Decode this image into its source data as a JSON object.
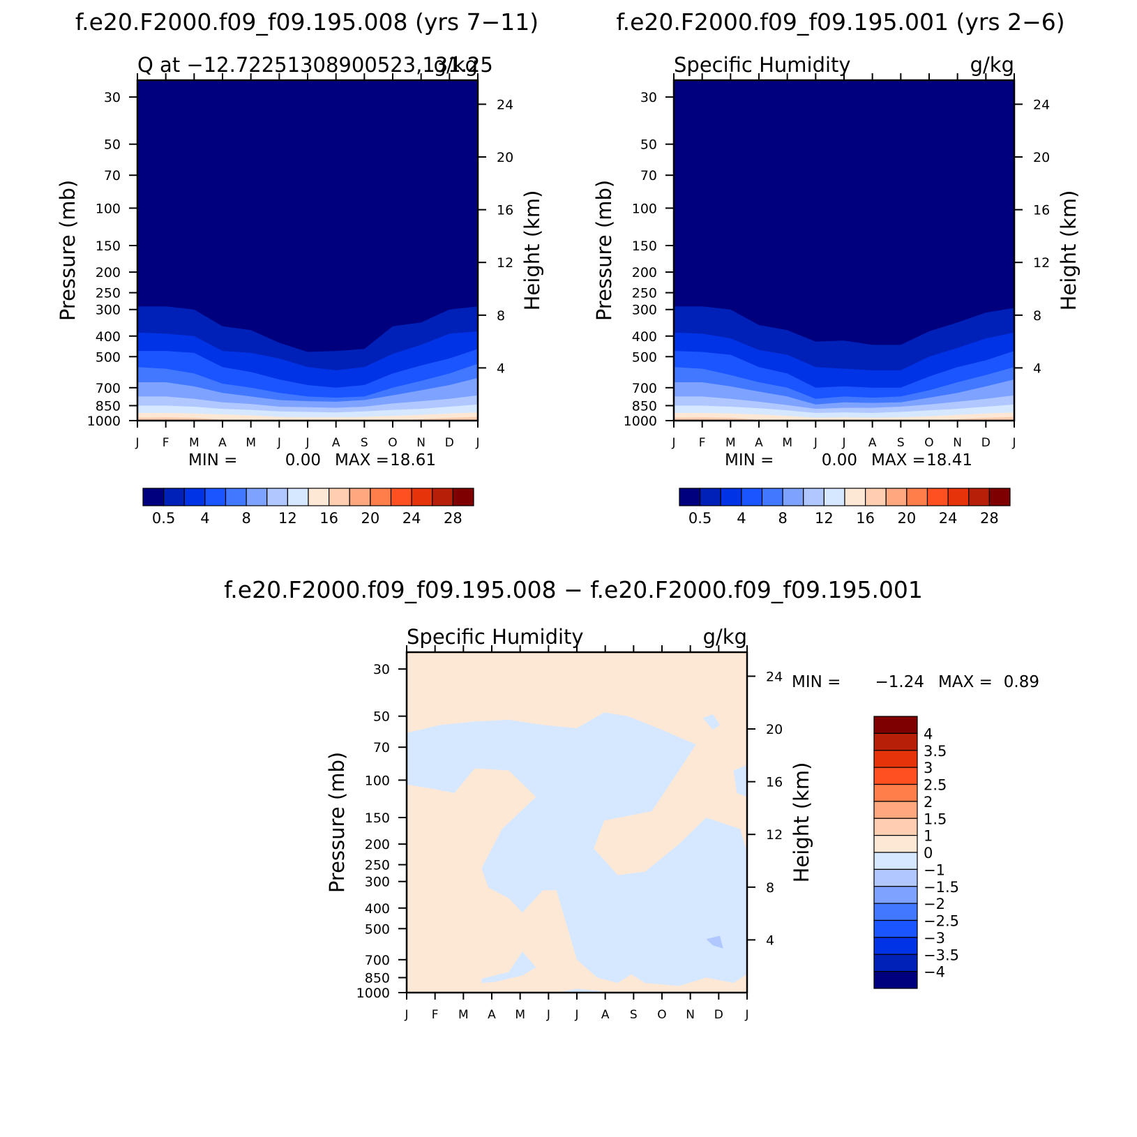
{
  "figure": {
    "panel_a_title": "f.e20.F2000.f09_f09.195.008 (yrs 7−11)",
    "panel_b_title": "f.e20.F2000.f09_f09.195.001 (yrs 2−6)",
    "panel_c_title": "f.e20.F2000.f09_f09.195.008 − f.e20.F2000.f09_f09.195.001"
  },
  "colors": {
    "abs_scale": [
      "#00007f",
      "#0021b8",
      "#0033e6",
      "#1a55ff",
      "#4178ff",
      "#7ea2ff",
      "#b0c8ff",
      "#d6e8ff",
      "#fde8d6",
      "#ffcdb0",
      "#ffa77f",
      "#ff7e4a",
      "#ff5022",
      "#e6330a",
      "#b81f08",
      "#7f0000"
    ],
    "diff_scale": [
      "#00007f",
      "#0021b8",
      "#0033e6",
      "#1a55ff",
      "#4178ff",
      "#7ea2ff",
      "#b0c8ff",
      "#d6e8ff",
      "#fde8d6",
      "#ffcdb0",
      "#ffa77f",
      "#ff7e4a",
      "#ff5022",
      "#e6330a",
      "#b81f08",
      "#7f0000"
    ]
  },
  "chart_data": [
    {
      "type": "heatmap",
      "title": "f.e20.F2000.f09_f09.195.008 (yrs 7−11)",
      "left_label": "Q at −12.72251308900523,131.25",
      "right_label": "g/kg",
      "xlabel": "",
      "ylabel": "Pressure (mb)",
      "y2label": "Height (km)",
      "months": [
        "J",
        "F",
        "M",
        "A",
        "M",
        "J",
        "J",
        "A",
        "S",
        "O",
        "N",
        "D",
        "J"
      ],
      "pressure_ticks": [
        30,
        50,
        70,
        100,
        150,
        200,
        250,
        300,
        400,
        500,
        700,
        850,
        1000
      ],
      "height_ticks": [
        4,
        8,
        12,
        16,
        20,
        24
      ],
      "ylim": [
        1000,
        25
      ],
      "min_label": "MIN =",
      "min_value": "0.00",
      "max_label": "MAX =",
      "max_value": "18.61",
      "min": 0.0,
      "max": 18.61,
      "colorbar_labels": [
        "0.5",
        "4",
        "8",
        "12",
        "16",
        "20",
        "24",
        "28"
      ],
      "contour_levels": [
        0.5,
        2,
        4,
        6,
        8,
        10,
        12,
        14,
        16
      ],
      "contour_pressures": [
        [
          290,
          290,
          300,
          360,
          375,
          430,
          475,
          470,
          460,
          360,
          345,
          300,
          290
        ],
        [
          385,
          390,
          400,
          470,
          480,
          510,
          560,
          580,
          560,
          485,
          440,
          390,
          380
        ],
        [
          470,
          470,
          480,
          560,
          590,
          640,
          680,
          700,
          680,
          600,
          550,
          510,
          460
        ],
        [
          560,
          570,
          600,
          670,
          700,
          740,
          770,
          780,
          770,
          700,
          650,
          600,
          540
        ],
        [
          660,
          660,
          690,
          740,
          770,
          800,
          810,
          815,
          800,
          760,
          720,
          680,
          630
        ],
        [
          770,
          770,
          790,
          820,
          835,
          860,
          865,
          870,
          860,
          830,
          810,
          790,
          760
        ],
        [
          850,
          850,
          860,
          880,
          890,
          905,
          910,
          915,
          905,
          890,
          880,
          860,
          840
        ],
        [
          920,
          920,
          925,
          935,
          945,
          960,
          965,
          965,
          960,
          950,
          940,
          925,
          915
        ],
        [
          968,
          965,
          970,
          990,
          1000,
          1000,
          1000,
          1000,
          1000,
          1000,
          985,
          970,
          960
        ]
      ]
    },
    {
      "type": "heatmap",
      "title": "f.e20.F2000.f09_f09.195.001 (yrs 2−6)",
      "left_label": "Specific Humidity",
      "right_label": "g/kg",
      "xlabel": "",
      "ylabel": "Pressure (mb)",
      "y2label": "Height (km)",
      "months": [
        "J",
        "F",
        "M",
        "A",
        "M",
        "J",
        "J",
        "A",
        "S",
        "O",
        "N",
        "D",
        "J"
      ],
      "pressure_ticks": [
        30,
        50,
        70,
        100,
        150,
        200,
        250,
        300,
        400,
        500,
        700,
        850,
        1000
      ],
      "height_ticks": [
        4,
        8,
        12,
        16,
        20,
        24
      ],
      "ylim": [
        1000,
        25
      ],
      "min_label": "MIN =",
      "min_value": "0.00",
      "max_label": "MAX =",
      "max_value": "18.41",
      "min": 0.0,
      "max": 18.41,
      "colorbar_labels": [
        "0.5",
        "4",
        "8",
        "12",
        "16",
        "20",
        "24",
        "28"
      ],
      "contour_levels": [
        0.5,
        2,
        4,
        6,
        8,
        10,
        12,
        14,
        16
      ],
      "contour_pressures": [
        [
          290,
          290,
          300,
          355,
          375,
          425,
          420,
          440,
          440,
          380,
          345,
          310,
          295
        ],
        [
          385,
          390,
          410,
          465,
          490,
          560,
          570,
          580,
          580,
          500,
          455,
          410,
          385
        ],
        [
          470,
          475,
          490,
          560,
          600,
          700,
          690,
          700,
          700,
          620,
          560,
          520,
          470
        ],
        [
          560,
          570,
          610,
          660,
          700,
          790,
          770,
          780,
          770,
          720,
          660,
          610,
          560
        ],
        [
          660,
          660,
          690,
          730,
          770,
          840,
          820,
          825,
          820,
          780,
          740,
          690,
          640
        ],
        [
          770,
          770,
          790,
          815,
          845,
          880,
          870,
          870,
          860,
          840,
          815,
          790,
          760
        ],
        [
          850,
          850,
          860,
          875,
          895,
          920,
          915,
          920,
          910,
          895,
          880,
          860,
          840
        ],
        [
          920,
          920,
          925,
          935,
          950,
          970,
          965,
          970,
          965,
          955,
          940,
          925,
          915
        ],
        [
          968,
          965,
          970,
          990,
          1000,
          1000,
          1000,
          1000,
          1000,
          1000,
          985,
          970,
          960
        ]
      ]
    },
    {
      "type": "heatmap",
      "title": "f.e20.F2000.f09_f09.195.008 − f.e20.F2000.f09_f09.195.001",
      "left_label": "Specific Humidity",
      "right_label": "g/kg",
      "xlabel": "",
      "ylabel": "Pressure (mb)",
      "y2label": "Height (km)",
      "months": [
        "J",
        "F",
        "M",
        "A",
        "M",
        "J",
        "J",
        "A",
        "S",
        "O",
        "N",
        "D",
        "J"
      ],
      "pressure_ticks": [
        30,
        50,
        70,
        100,
        150,
        200,
        250,
        300,
        400,
        500,
        700,
        850,
        1000
      ],
      "height_ticks": [
        4,
        8,
        12,
        16,
        20,
        24
      ],
      "ylim": [
        1000,
        25
      ],
      "min_label": "MIN =",
      "min_value": "−1.24",
      "max_label": "MAX =",
      "max_value": "0.89",
      "min": -1.24,
      "max": 0.89,
      "colorbar_labels": [
        "4",
        "3.5",
        "3",
        "2.5",
        "2",
        "1.5",
        "1",
        "0",
        "−1",
        "−1.5",
        "−2",
        "−2.5",
        "−3",
        "−3.5",
        "−4"
      ],
      "field_background": "positive (0 to 1)",
      "negative_regions": [
        {
          "level": "-1 to 0",
          "points": [
            [
              0.0,
              60
            ],
            [
              0.1,
              55
            ],
            [
              0.2,
              53
            ],
            [
              0.3,
              52
            ],
            [
              0.4,
              55
            ],
            [
              0.5,
              57
            ],
            [
              0.58,
              48
            ],
            [
              0.65,
              50
            ],
            [
              0.75,
              58
            ],
            [
              0.85,
              68
            ],
            [
              0.8,
              90
            ],
            [
              0.72,
              140
            ],
            [
              0.58,
              155
            ],
            [
              0.55,
              210
            ],
            [
              0.62,
              280
            ],
            [
              0.7,
              270
            ],
            [
              0.8,
              200
            ],
            [
              0.88,
              150
            ],
            [
              0.98,
              170
            ],
            [
              1.0,
              220
            ],
            [
              1.0,
              820
            ],
            [
              0.96,
              900
            ],
            [
              0.88,
              850
            ],
            [
              0.8,
              930
            ],
            [
              0.7,
              900
            ],
            [
              0.66,
              820
            ],
            [
              0.62,
              900
            ],
            [
              0.56,
              850
            ],
            [
              0.5,
              700
            ],
            [
              0.44,
              330
            ],
            [
              0.4,
              330
            ],
            [
              0.34,
              420
            ],
            [
              0.3,
              360
            ],
            [
              0.24,
              320
            ],
            [
              0.22,
              260
            ],
            [
              0.28,
              170
            ],
            [
              0.38,
              120
            ],
            [
              0.3,
              90
            ],
            [
              0.2,
              88
            ],
            [
              0.14,
              115
            ],
            [
              0.08,
              110
            ],
            [
              0.0,
              105
            ]
          ]
        },
        {
          "level": "-1 to 0",
          "points": [
            [
              0.22,
              860
            ],
            [
              0.3,
              800
            ],
            [
              0.34,
              640
            ],
            [
              0.36,
              700
            ],
            [
              0.38,
              760
            ],
            [
              0.34,
              830
            ],
            [
              0.26,
              890
            ],
            [
              0.22,
              900
            ]
          ]
        },
        {
          "level": "-1 to 0",
          "points": [
            [
              0.96,
              90
            ],
            [
              1.0,
              85
            ],
            [
              1.0,
              120
            ],
            [
              0.97,
              115
            ]
          ]
        },
        {
          "level": "-1 to 0",
          "points": [
            [
              0.44,
              1000
            ],
            [
              0.5,
              960
            ],
            [
              0.56,
              980
            ],
            [
              0.6,
              1000
            ]
          ]
        },
        {
          "level": "-1 to 0",
          "points": [
            [
              0.87,
              51
            ],
            [
              0.9,
              49
            ],
            [
              0.92,
              55
            ],
            [
              0.9,
              58
            ]
          ]
        },
        {
          "level": "-1.5 to -1",
          "points": [
            [
              0.88,
              560
            ],
            [
              0.92,
              540
            ],
            [
              0.93,
              620
            ],
            [
              0.9,
              600
            ]
          ]
        }
      ]
    }
  ]
}
